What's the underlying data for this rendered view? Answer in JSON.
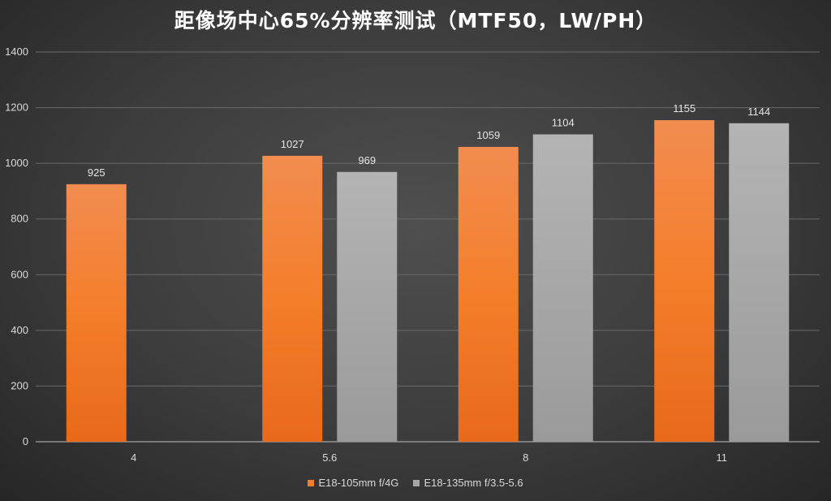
{
  "chart_data": {
    "type": "bar",
    "title": "距像场中心65%分辨率测试（MTF50，LW/PH）",
    "categories": [
      "4",
      "5.6",
      "8",
      "11"
    ],
    "series": [
      {
        "name": "E18-105mm f/4G",
        "values": [
          925,
          1027,
          1059,
          1155
        ],
        "color": "#f07c2e"
      },
      {
        "name": "E18-135mm f/3.5-5.6",
        "values": [
          null,
          969,
          1104,
          1144
        ],
        "color": "#a6a6a6"
      }
    ],
    "ylim": [
      0,
      1400
    ],
    "yticks": [
      0,
      200,
      400,
      600,
      800,
      1000,
      1200,
      1400
    ],
    "grid": true,
    "legend": "bottom",
    "xlabel": "",
    "ylabel": ""
  }
}
